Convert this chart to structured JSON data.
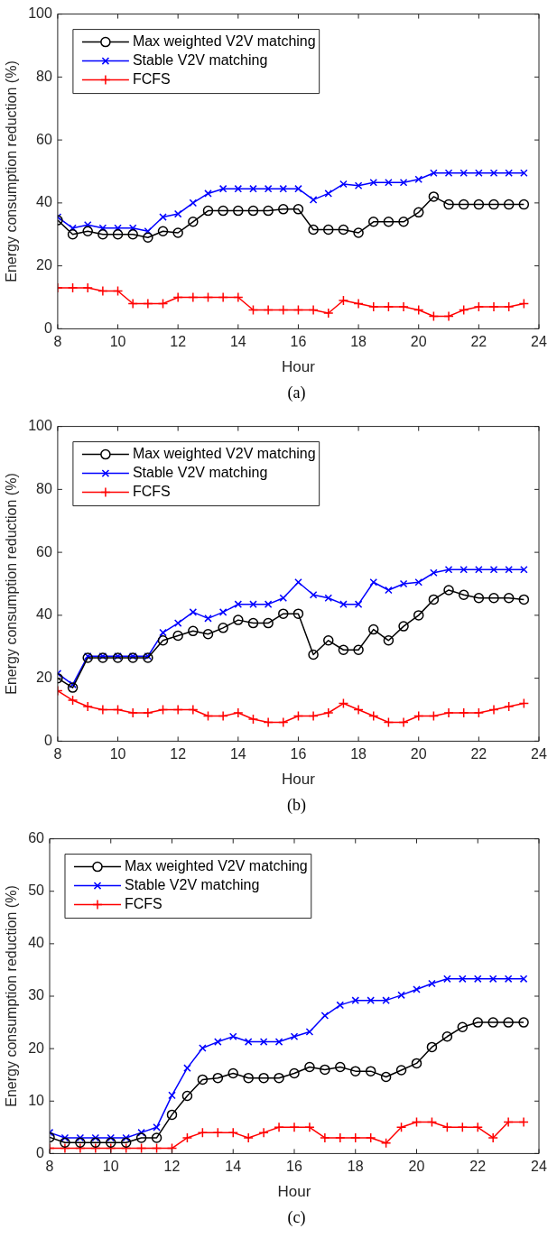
{
  "chart_data": [
    {
      "type": "line",
      "xlabel": "Hour",
      "ylabel": "Energy consumption reduction (%)",
      "annotations": [
        "(a)"
      ],
      "legend": "top left",
      "xlim": [
        8,
        24
      ],
      "xticks": [
        8,
        10,
        12,
        14,
        16,
        18,
        20,
        22,
        24
      ],
      "ylim": [
        0,
        100
      ],
      "yticks": [
        0,
        20,
        40,
        60,
        80,
        100
      ],
      "x": [
        8,
        8.5,
        9,
        9.5,
        10,
        10.5,
        11,
        11.5,
        12,
        12.5,
        13,
        13.5,
        14,
        14.5,
        15,
        15.5,
        16,
        16.5,
        17,
        17.5,
        18,
        18.5,
        19,
        19.5,
        20,
        20.5,
        21,
        21.5,
        22,
        22.5,
        23,
        23.5
      ],
      "series": [
        {
          "name": "Max weighted V2V matching",
          "color": "#000000",
          "marker": "circle",
          "values": [
            34.5,
            30,
            31,
            30,
            30,
            30,
            29,
            31,
            30.5,
            34,
            37.5,
            37.5,
            37.5,
            37.5,
            37.5,
            38,
            38,
            31.5,
            31.5,
            31.5,
            30.5,
            34,
            34,
            34,
            37,
            42,
            39.5,
            39.5,
            39.5,
            39.5,
            39.5,
            39.5
          ]
        },
        {
          "name": "Stable V2V matching",
          "color": "#0000ff",
          "marker": "x",
          "values": [
            35.5,
            32,
            33,
            32,
            32,
            32,
            31,
            35.5,
            36.5,
            40,
            43,
            44.5,
            44.5,
            44.5,
            44.5,
            44.5,
            44.5,
            41,
            43,
            46,
            45.5,
            46.5,
            46.5,
            46.5,
            47.5,
            49.5,
            49.5,
            49.5,
            49.5,
            49.5,
            49.5,
            49.5
          ]
        },
        {
          "name": "FCFS",
          "color": "#ff0000",
          "marker": "cross",
          "values": [
            13,
            13,
            13,
            12,
            12,
            8,
            8,
            8,
            10,
            10,
            10,
            10,
            10,
            6,
            6,
            6,
            6,
            6,
            5,
            9,
            8,
            7,
            7,
            7,
            6,
            4,
            4,
            6,
            7,
            7,
            7,
            8
          ]
        }
      ]
    },
    {
      "type": "line",
      "xlabel": "Hour",
      "ylabel": "Energy consumption reduction (%)",
      "annotations": [
        "(b)"
      ],
      "legend": "top left",
      "xlim": [
        8,
        24
      ],
      "xticks": [
        8,
        10,
        12,
        14,
        16,
        18,
        20,
        22,
        24
      ],
      "ylim": [
        0,
        100
      ],
      "yticks": [
        0,
        20,
        40,
        60,
        80,
        100
      ],
      "x": [
        8,
        8.5,
        9,
        9.5,
        10,
        10.5,
        11,
        11.5,
        12,
        12.5,
        13,
        13.5,
        14,
        14.5,
        15,
        15.5,
        16,
        16.5,
        17,
        17.5,
        18,
        18.5,
        19,
        19.5,
        20,
        20.5,
        21,
        21.5,
        22,
        22.5,
        23,
        23.5
      ],
      "series": [
        {
          "name": "Max weighted V2V matching",
          "color": "#000000",
          "marker": "circle",
          "values": [
            20,
            17,
            26.5,
            26.5,
            26.5,
            26.5,
            26.5,
            32,
            33.5,
            35,
            34,
            36,
            38.5,
            37.5,
            37.5,
            40.5,
            40.5,
            27.5,
            32,
            29,
            29,
            35.5,
            32,
            36.5,
            40,
            45,
            48,
            46.5,
            45.5,
            45.5,
            45.5,
            45
          ]
        },
        {
          "name": "Stable V2V matching",
          "color": "#0000ff",
          "marker": "x",
          "values": [
            21.5,
            18,
            27,
            27,
            27,
            27,
            27,
            34.5,
            37.5,
            41,
            39,
            41,
            43.5,
            43.5,
            43.5,
            45.5,
            50.5,
            46.5,
            45.5,
            43.5,
            43.5,
            50.5,
            48,
            50,
            50.5,
            53.5,
            54.5,
            54.5,
            54.5,
            54.5,
            54.5,
            54.5
          ]
        },
        {
          "name": "FCFS",
          "color": "#ff0000",
          "marker": "cross",
          "values": [
            16,
            13,
            11,
            10,
            10,
            9,
            9,
            10,
            10,
            10,
            8,
            8,
            9,
            7,
            6,
            6,
            8,
            8,
            9,
            12,
            10,
            8,
            6,
            6,
            8,
            8,
            9,
            9,
            9,
            10,
            11,
            12
          ]
        }
      ]
    },
    {
      "type": "line",
      "xlabel": "Hour",
      "ylabel": "Energy consumption reduction (%)",
      "annotations": [
        "(c)"
      ],
      "legend": "top left",
      "xlim": [
        8,
        24
      ],
      "xticks": [
        8,
        10,
        12,
        14,
        16,
        18,
        20,
        22,
        24
      ],
      "ylim": [
        0,
        60
      ],
      "yticks": [
        0,
        10,
        20,
        30,
        40,
        50,
        60
      ],
      "x": [
        8,
        8.5,
        9,
        9.5,
        10,
        10.5,
        11,
        11.5,
        12,
        12.5,
        13,
        13.5,
        14,
        14.5,
        15,
        15.5,
        16,
        16.5,
        17,
        17.5,
        18,
        18.5,
        19,
        19.5,
        20,
        20.5,
        21,
        21.5,
        22,
        22.5,
        23,
        23.5
      ],
      "series": [
        {
          "name": "Max weighted V2V matching",
          "color": "#000000",
          "marker": "circle",
          "values": [
            3.1,
            2.1,
            2.1,
            2.1,
            2.1,
            2.1,
            3,
            3,
            7.4,
            11,
            14.1,
            14.4,
            15.3,
            14.4,
            14.4,
            14.4,
            15.3,
            16.5,
            16,
            16.5,
            15.7,
            15.7,
            14.6,
            15.9,
            17.2,
            20.3,
            22.3,
            24.1,
            25,
            25,
            25,
            25
          ]
        },
        {
          "name": "Stable V2V matching",
          "color": "#0000ff",
          "marker": "x",
          "values": [
            4,
            3,
            3,
            3,
            3,
            3,
            4,
            5,
            11.1,
            16.3,
            20.1,
            21.3,
            22.3,
            21.3,
            21.3,
            21.3,
            22.3,
            23.2,
            26.3,
            28.3,
            29.2,
            29.2,
            29.2,
            30.2,
            31.3,
            32.4,
            33.3,
            33.3,
            33.3,
            33.3,
            33.3,
            33.3
          ]
        },
        {
          "name": "FCFS",
          "color": "#ff0000",
          "marker": "cross",
          "values": [
            1,
            1,
            1,
            1,
            1,
            1,
            1,
            1,
            1,
            3,
            4,
            4,
            4,
            3,
            4,
            5,
            5,
            5,
            3,
            3,
            3,
            3,
            2,
            5,
            6,
            6,
            5,
            5,
            5,
            3,
            6,
            6
          ]
        }
      ]
    }
  ]
}
